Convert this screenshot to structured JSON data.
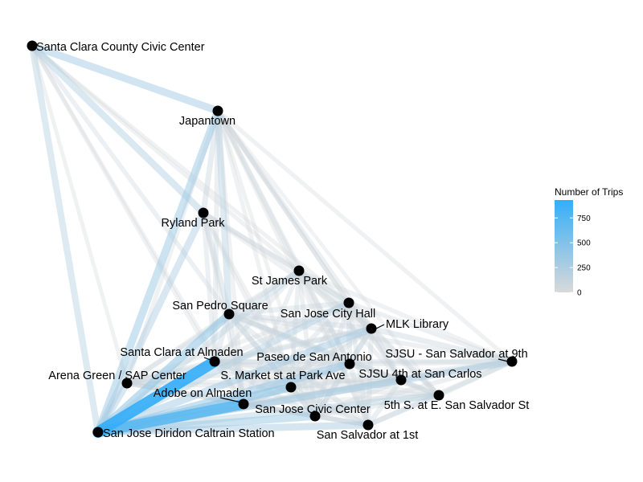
{
  "chart_data": {
    "type": "network",
    "legend": {
      "title": "Number of Trips",
      "ticks": [
        0,
        250,
        500,
        750
      ],
      "max": 930,
      "colors": {
        "low": "#d9d9d9",
        "high": "#35aef8"
      },
      "placement": "right"
    },
    "nodes": [
      {
        "id": "civic",
        "label": "Santa Clara County Civic Center"
      },
      {
        "id": "japantown",
        "label": "Japantown"
      },
      {
        "id": "ryland",
        "label": "Ryland Park"
      },
      {
        "id": "stjames",
        "label": "St James Park"
      },
      {
        "id": "sanpedro",
        "label": "San Pedro Square"
      },
      {
        "id": "cityhall",
        "label": "San Jose City Hall"
      },
      {
        "id": "mlk",
        "label": "MLK Library"
      },
      {
        "id": "scalmaden",
        "label": "Santa Clara at Almaden"
      },
      {
        "id": "paseo",
        "label": "Paseo de San Antonio"
      },
      {
        "id": "sjsu9th",
        "label": "SJSU - San Salvador at 9th"
      },
      {
        "id": "arena",
        "label": "Arena Green / SAP Center"
      },
      {
        "id": "smarket",
        "label": "S. Market st at Park Ave"
      },
      {
        "id": "sjsu4th",
        "label": "SJSU 4th at San Carlos"
      },
      {
        "id": "adobe",
        "label": "Adobe on Almaden"
      },
      {
        "id": "fifth",
        "label": "5th S. at E. San Salvador St"
      },
      {
        "id": "civiccenter",
        "label": "San Jose Civic Center"
      },
      {
        "id": "diridon",
        "label": "San Jose Diridon Caltrain Station"
      },
      {
        "id": "sansalvador",
        "label": "San Salvador at 1st"
      }
    ],
    "edges": [
      {
        "source": "civic",
        "target": "japantown",
        "trips": 300
      },
      {
        "source": "civic",
        "target": "ryland",
        "trips": 230
      },
      {
        "source": "civic",
        "target": "diridon",
        "trips": 200
      },
      {
        "source": "civic",
        "target": "sanpedro",
        "trips": 60
      },
      {
        "source": "civic",
        "target": "stjames",
        "trips": 40
      },
      {
        "source": "civic",
        "target": "cityhall",
        "trips": 30
      },
      {
        "source": "civic",
        "target": "scalmaden",
        "trips": 40
      },
      {
        "source": "civic",
        "target": "arena",
        "trips": 30
      },
      {
        "source": "civic",
        "target": "adobe",
        "trips": 20
      },
      {
        "source": "japantown",
        "target": "diridon",
        "trips": 330
      },
      {
        "source": "japantown",
        "target": "sanpedro",
        "trips": 200
      },
      {
        "source": "japantown",
        "target": "ryland",
        "trips": 120
      },
      {
        "source": "japantown",
        "target": "stjames",
        "trips": 80
      },
      {
        "source": "japantown",
        "target": "cityhall",
        "trips": 60
      },
      {
        "source": "japantown",
        "target": "mlk",
        "trips": 60
      },
      {
        "source": "japantown",
        "target": "scalmaden",
        "trips": 80
      },
      {
        "source": "japantown",
        "target": "paseo",
        "trips": 50
      },
      {
        "source": "japantown",
        "target": "sjsu9th",
        "trips": 40
      },
      {
        "source": "japantown",
        "target": "arena",
        "trips": 50
      },
      {
        "source": "japantown",
        "target": "smarket",
        "trips": 40
      },
      {
        "source": "japantown",
        "target": "sjsu4th",
        "trips": 40
      },
      {
        "source": "japantown",
        "target": "adobe",
        "trips": 40
      },
      {
        "source": "japantown",
        "target": "civiccenter",
        "trips": 30
      },
      {
        "source": "japantown",
        "target": "sansalvador",
        "trips": 30
      },
      {
        "source": "japantown",
        "target": "fifth",
        "trips": 20
      },
      {
        "source": "ryland",
        "target": "diridon",
        "trips": 250
      },
      {
        "source": "ryland",
        "target": "sanpedro",
        "trips": 120
      },
      {
        "source": "ryland",
        "target": "stjames",
        "trips": 60
      },
      {
        "source": "ryland",
        "target": "cityhall",
        "trips": 60
      },
      {
        "source": "ryland",
        "target": "mlk",
        "trips": 50
      },
      {
        "source": "ryland",
        "target": "scalmaden",
        "trips": 60
      },
      {
        "source": "ryland",
        "target": "smarket",
        "trips": 40
      },
      {
        "source": "ryland",
        "target": "adobe",
        "trips": 40
      },
      {
        "source": "ryland",
        "target": "civiccenter",
        "trips": 30
      },
      {
        "source": "stjames",
        "target": "diridon",
        "trips": 160
      },
      {
        "source": "stjames",
        "target": "sanpedro",
        "trips": 100
      },
      {
        "source": "stjames",
        "target": "cityhall",
        "trips": 90
      },
      {
        "source": "stjames",
        "target": "mlk",
        "trips": 80
      },
      {
        "source": "stjames",
        "target": "scalmaden",
        "trips": 70
      },
      {
        "source": "stjames",
        "target": "paseo",
        "trips": 90
      },
      {
        "source": "stjames",
        "target": "sjsu9th",
        "trips": 50
      },
      {
        "source": "stjames",
        "target": "arena",
        "trips": 50
      },
      {
        "source": "stjames",
        "target": "smarket",
        "trips": 60
      },
      {
        "source": "stjames",
        "target": "sjsu4th",
        "trips": 60
      },
      {
        "source": "stjames",
        "target": "adobe",
        "trips": 60
      },
      {
        "source": "stjames",
        "target": "civiccenter",
        "trips": 60
      },
      {
        "source": "stjames",
        "target": "sansalvador",
        "trips": 50
      },
      {
        "source": "stjames",
        "target": "fifth",
        "trips": 40
      },
      {
        "source": "sanpedro",
        "target": "diridon",
        "trips": 400
      },
      {
        "source": "sanpedro",
        "target": "arena",
        "trips": 90
      },
      {
        "source": "sanpedro",
        "target": "scalmaden",
        "trips": 110
      },
      {
        "source": "sanpedro",
        "target": "cityhall",
        "trips": 90
      },
      {
        "source": "sanpedro",
        "target": "mlk",
        "trips": 110
      },
      {
        "source": "sanpedro",
        "target": "paseo",
        "trips": 110
      },
      {
        "source": "sanpedro",
        "target": "smarket",
        "trips": 110
      },
      {
        "source": "sanpedro",
        "target": "adobe",
        "trips": 110
      },
      {
        "source": "sanpedro",
        "target": "civiccenter",
        "trips": 90
      },
      {
        "source": "sanpedro",
        "target": "sansalvador",
        "trips": 90
      },
      {
        "source": "sanpedro",
        "target": "sjsu4th",
        "trips": 80
      },
      {
        "source": "sanpedro",
        "target": "sjsu9th",
        "trips": 60
      },
      {
        "source": "sanpedro",
        "target": "fifth",
        "trips": 60
      },
      {
        "source": "cityhall",
        "target": "diridon",
        "trips": 220
      },
      {
        "source": "cityhall",
        "target": "mlk",
        "trips": 80
      },
      {
        "source": "cityhall",
        "target": "paseo",
        "trips": 90
      },
      {
        "source": "cityhall",
        "target": "sjsu9th",
        "trips": 60
      },
      {
        "source": "cityhall",
        "target": "scalmaden",
        "trips": 80
      },
      {
        "source": "cityhall",
        "target": "arena",
        "trips": 50
      },
      {
        "source": "cityhall",
        "target": "smarket",
        "trips": 70
      },
      {
        "source": "cityhall",
        "target": "sjsu4th",
        "trips": 60
      },
      {
        "source": "cityhall",
        "target": "adobe",
        "trips": 70
      },
      {
        "source": "cityhall",
        "target": "fifth",
        "trips": 50
      },
      {
        "source": "cityhall",
        "target": "civiccenter",
        "trips": 70
      },
      {
        "source": "cityhall",
        "target": "sansalvador",
        "trips": 60
      },
      {
        "source": "mlk",
        "target": "diridon",
        "trips": 300
      },
      {
        "source": "mlk",
        "target": "sjsu9th",
        "trips": 120
      },
      {
        "source": "mlk",
        "target": "paseo",
        "trips": 110
      },
      {
        "source": "mlk",
        "target": "sjsu4th",
        "trips": 100
      },
      {
        "source": "mlk",
        "target": "fifth",
        "trips": 80
      },
      {
        "source": "mlk",
        "target": "scalmaden",
        "trips": 90
      },
      {
        "source": "mlk",
        "target": "arena",
        "trips": 60
      },
      {
        "source": "mlk",
        "target": "smarket",
        "trips": 80
      },
      {
        "source": "mlk",
        "target": "adobe",
        "trips": 80
      },
      {
        "source": "mlk",
        "target": "civiccenter",
        "trips": 90
      },
      {
        "source": "mlk",
        "target": "sansalvador",
        "trips": 80
      },
      {
        "source": "scalmaden",
        "target": "diridon",
        "trips": 930
      },
      {
        "source": "scalmaden",
        "target": "arena",
        "trips": 110
      },
      {
        "source": "scalmaden",
        "target": "paseo",
        "trips": 100
      },
      {
        "source": "scalmaden",
        "target": "smarket",
        "trips": 90
      },
      {
        "source": "scalmaden",
        "target": "adobe",
        "trips": 80
      },
      {
        "source": "scalmaden",
        "target": "civiccenter",
        "trips": 90
      },
      {
        "source": "scalmaden",
        "target": "sansalvador",
        "trips": 70
      },
      {
        "source": "scalmaden",
        "target": "sjsu4th",
        "trips": 70
      },
      {
        "source": "scalmaden",
        "target": "sjsu9th",
        "trips": 60
      },
      {
        "source": "scalmaden",
        "target": "fifth",
        "trips": 50
      },
      {
        "source": "paseo",
        "target": "diridon",
        "trips": 350
      },
      {
        "source": "paseo",
        "target": "sjsu9th",
        "trips": 100
      },
      {
        "source": "paseo",
        "target": "sjsu4th",
        "trips": 90
      },
      {
        "source": "paseo",
        "target": "fifth",
        "trips": 70
      },
      {
        "source": "paseo",
        "target": "arena",
        "trips": 70
      },
      {
        "source": "paseo",
        "target": "smarket",
        "trips": 90
      },
      {
        "source": "paseo",
        "target": "adobe",
        "trips": 90
      },
      {
        "source": "paseo",
        "target": "civiccenter",
        "trips": 90
      },
      {
        "source": "paseo",
        "target": "sansalvador",
        "trips": 80
      },
      {
        "source": "sjsu9th",
        "target": "diridon",
        "trips": 250
      },
      {
        "source": "sjsu9th",
        "target": "sjsu4th",
        "trips": 90
      },
      {
        "source": "sjsu9th",
        "target": "fifth",
        "trips": 80
      },
      {
        "source": "sjsu9th",
        "target": "sansalvador",
        "trips": 90
      },
      {
        "source": "sjsu9th",
        "target": "civiccenter",
        "trips": 70
      },
      {
        "source": "sjsu9th",
        "target": "smarket",
        "trips": 60
      },
      {
        "source": "sjsu9th",
        "target": "adobe",
        "trips": 60
      },
      {
        "source": "arena",
        "target": "diridon",
        "trips": 250
      },
      {
        "source": "arena",
        "target": "adobe",
        "trips": 80
      },
      {
        "source": "arena",
        "target": "smarket",
        "trips": 60
      },
      {
        "source": "arena",
        "target": "civiccenter",
        "trips": 60
      },
      {
        "source": "arena",
        "target": "sansalvador",
        "trips": 50
      },
      {
        "source": "arena",
        "target": "sjsu4th",
        "trips": 40
      },
      {
        "source": "smarket",
        "target": "diridon",
        "trips": 420
      },
      {
        "source": "smarket",
        "target": "adobe",
        "trips": 80
      },
      {
        "source": "smarket",
        "target": "civiccenter",
        "trips": 90
      },
      {
        "source": "smarket",
        "target": "sansalvador",
        "trips": 80
      },
      {
        "source": "smarket",
        "target": "sjsu4th",
        "trips": 80
      },
      {
        "source": "smarket",
        "target": "fifth",
        "trips": 60
      },
      {
        "source": "sjsu4th",
        "target": "diridon",
        "trips": 250
      },
      {
        "source": "sjsu4th",
        "target": "fifth",
        "trips": 80
      },
      {
        "source": "sjsu4th",
        "target": "sansalvador",
        "trips": 90
      },
      {
        "source": "sjsu4th",
        "target": "civiccenter",
        "trips": 80
      },
      {
        "source": "sjsu4th",
        "target": "adobe",
        "trips": 70
      },
      {
        "source": "adobe",
        "target": "diridon",
        "trips": 760
      },
      {
        "source": "adobe",
        "target": "civiccenter",
        "trips": 80
      },
      {
        "source": "adobe",
        "target": "sansalvador",
        "trips": 70
      },
      {
        "source": "adobe",
        "target": "fifth",
        "trips": 50
      },
      {
        "source": "fifth",
        "target": "diridon",
        "trips": 200
      },
      {
        "source": "fifth",
        "target": "sansalvador",
        "trips": 90
      },
      {
        "source": "fifth",
        "target": "civiccenter",
        "trips": 70
      },
      {
        "source": "civiccenter",
        "target": "diridon",
        "trips": 330
      },
      {
        "source": "civiccenter",
        "target": "sansalvador",
        "trips": 90
      },
      {
        "source": "diridon",
        "target": "sansalvador",
        "trips": 260
      }
    ]
  }
}
